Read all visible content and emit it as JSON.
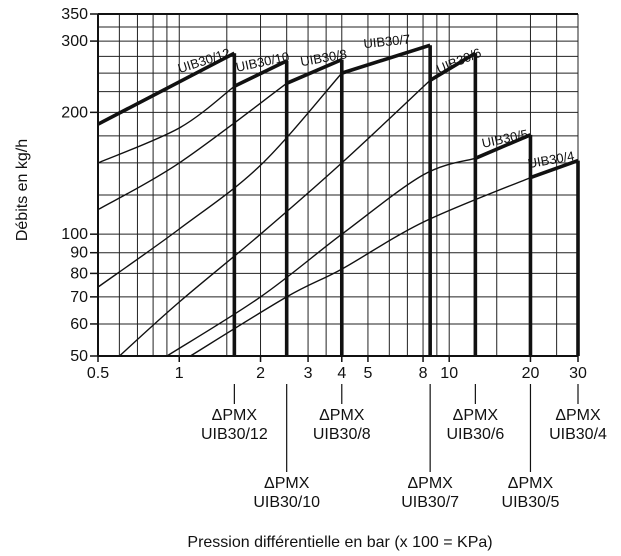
{
  "chart_data": {
    "type": "line",
    "xlabel": "Pression différentielle en bar (x 100 = KPa)",
    "ylabel": "Débits en kg/h",
    "x_scale": "log",
    "y_scale": "log",
    "xlim": [
      0.5,
      30
    ],
    "ylim": [
      50,
      350
    ],
    "grid": true,
    "x_ticks": [
      {
        "value": 0.5,
        "label": "0.5"
      },
      {
        "value": 1,
        "label": "1"
      },
      {
        "value": 2,
        "label": "2"
      },
      {
        "value": 3,
        "label": "3"
      },
      {
        "value": 4,
        "label": "4"
      },
      {
        "value": 5,
        "label": "5"
      },
      {
        "value": 8,
        "label": "8"
      },
      {
        "value": 10,
        "label": "10"
      },
      {
        "value": 20,
        "label": "20"
      },
      {
        "value": 30,
        "label": "30"
      }
    ],
    "y_ticks": [
      {
        "value": 50,
        "label": "50"
      },
      {
        "value": 60,
        "label": "60"
      },
      {
        "value": 70,
        "label": "70"
      },
      {
        "value": 80,
        "label": "80"
      },
      {
        "value": 90,
        "label": "90"
      },
      {
        "value": 100,
        "label": "100"
      },
      {
        "value": 200,
        "label": "200"
      },
      {
        "value": 300,
        "label": "300"
      },
      {
        "value": 350,
        "label": "350"
      }
    ],
    "series": [
      {
        "name": "UIB30/12",
        "pmx": 1.6,
        "x": [
          0.5,
          1.6
        ],
        "y": [
          187,
          280
        ],
        "end_y": 232,
        "max_y": 280
      },
      {
        "name": "UIB30/10",
        "pmx": 2.5,
        "x": [
          0.5,
          1.0,
          1.6,
          2.5
        ],
        "y": [
          150,
          183,
          232,
          268
        ],
        "end_y": 236,
        "max_y": 268
      },
      {
        "name": "UIB30/8",
        "pmx": 4.0,
        "x": [
          0.5,
          1.0,
          2.5,
          4.0
        ],
        "y": [
          115,
          150,
          236,
          270
        ],
        "end_y": 250,
        "max_y": 270
      },
      {
        "name": "UIB30/7",
        "pmx": 8.5,
        "x": [
          0.5,
          1.0,
          2.0,
          4.0,
          8.5
        ],
        "y": [
          74,
          103,
          148,
          250,
          293
        ],
        "end_y": 240,
        "max_y": 293
      },
      {
        "name": "UIB30/6",
        "pmx": 12.5,
        "x": [
          0.6,
          1.0,
          2.0,
          4.0,
          8.5,
          12.5
        ],
        "y": [
          50,
          68,
          100,
          150,
          240,
          280
        ],
        "end_y": 175,
        "max_y": 280
      },
      {
        "name": "UIB30/5",
        "pmx": 20,
        "x": [
          0.9,
          2.0,
          4.0,
          8.0,
          12.5,
          20
        ],
        "y": [
          50,
          70,
          100,
          140,
          154,
          176
        ],
        "end_y": 140,
        "max_y": 176
      },
      {
        "name": "UIB30/4",
        "pmx": 30,
        "x": [
          1.1,
          2.5,
          4.0,
          8.0,
          20,
          30
        ],
        "y": [
          50,
          70,
          82,
          107,
          138,
          152
        ],
        "end_y": 152,
        "max_y": 152
      }
    ],
    "annotations": [
      {
        "symbol": "ΔPMX",
        "model": "UIB30/12",
        "x": 1.6,
        "row": 1
      },
      {
        "symbol": "ΔPMX",
        "model": "UIB30/10",
        "x": 2.5,
        "row": 2
      },
      {
        "symbol": "ΔPMX",
        "model": "UIB30/8",
        "x": 4.0,
        "row": 1
      },
      {
        "symbol": "ΔPMX",
        "model": "UIB30/7",
        "x": 8.5,
        "row": 2
      },
      {
        "symbol": "ΔPMX",
        "model": "UIB30/6",
        "x": 12.5,
        "row": 1
      },
      {
        "symbol": "ΔPMX",
        "model": "UIB30/5",
        "x": 20,
        "row": 2
      },
      {
        "symbol": "ΔPMX",
        "model": "UIB30/4",
        "x": 30,
        "row": 1
      }
    ]
  }
}
